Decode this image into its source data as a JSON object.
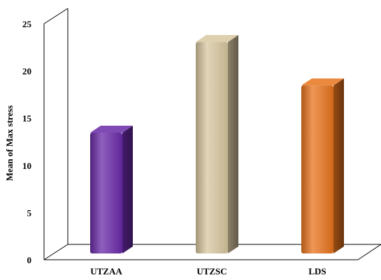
{
  "chart_data": {
    "type": "bar",
    "title": "",
    "xlabel": "",
    "ylabel": "Mean of Max stress",
    "categories": [
      "UTZAA",
      "UTZSC",
      "LDS"
    ],
    "values": [
      12.8,
      22.4,
      17.8
    ],
    "ylim": [
      0,
      25
    ],
    "yticks": [
      0,
      5,
      10,
      15,
      20,
      25
    ],
    "grid": false,
    "legend": "none",
    "colors": [
      "#6a2aa8",
      "#d8c7a0",
      "#e8741d"
    ]
  }
}
